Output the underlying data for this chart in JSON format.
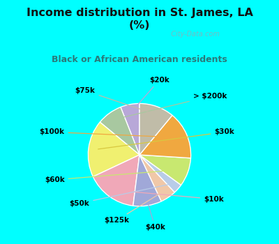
{
  "title": "Income distribution in St. James, LA\n(%)",
  "subtitle": "Black or African American residents",
  "labels": [
    "$20k",
    "> $200k",
    "$30k",
    "$10k",
    "$40k",
    "$125k",
    "$50k",
    "$60k",
    "$100k",
    "$75k"
  ],
  "values": [
    6,
    8,
    18,
    16,
    9,
    5,
    3,
    9,
    15,
    11
  ],
  "colors": [
    "#b8a8d8",
    "#a8c8a0",
    "#f0f070",
    "#f0a8b8",
    "#a0a8d8",
    "#f0c8a8",
    "#b8cce8",
    "#c8e870",
    "#f0a840",
    "#c0bca8"
  ],
  "line_colors": [
    "#b8a8d8",
    "#a8c8a0",
    "#d8c840",
    "#f0a8b8",
    "#a0a8d8",
    "#f0c8a8",
    "#b8cce8",
    "#c8e870",
    "#f0a840",
    "#c0bca8"
  ],
  "bg_color": "#00FFFF",
  "title_color": "#111111",
  "subtitle_color": "#2a7a7a",
  "watermark": "  City-Data.com",
  "start_angle": 90
}
